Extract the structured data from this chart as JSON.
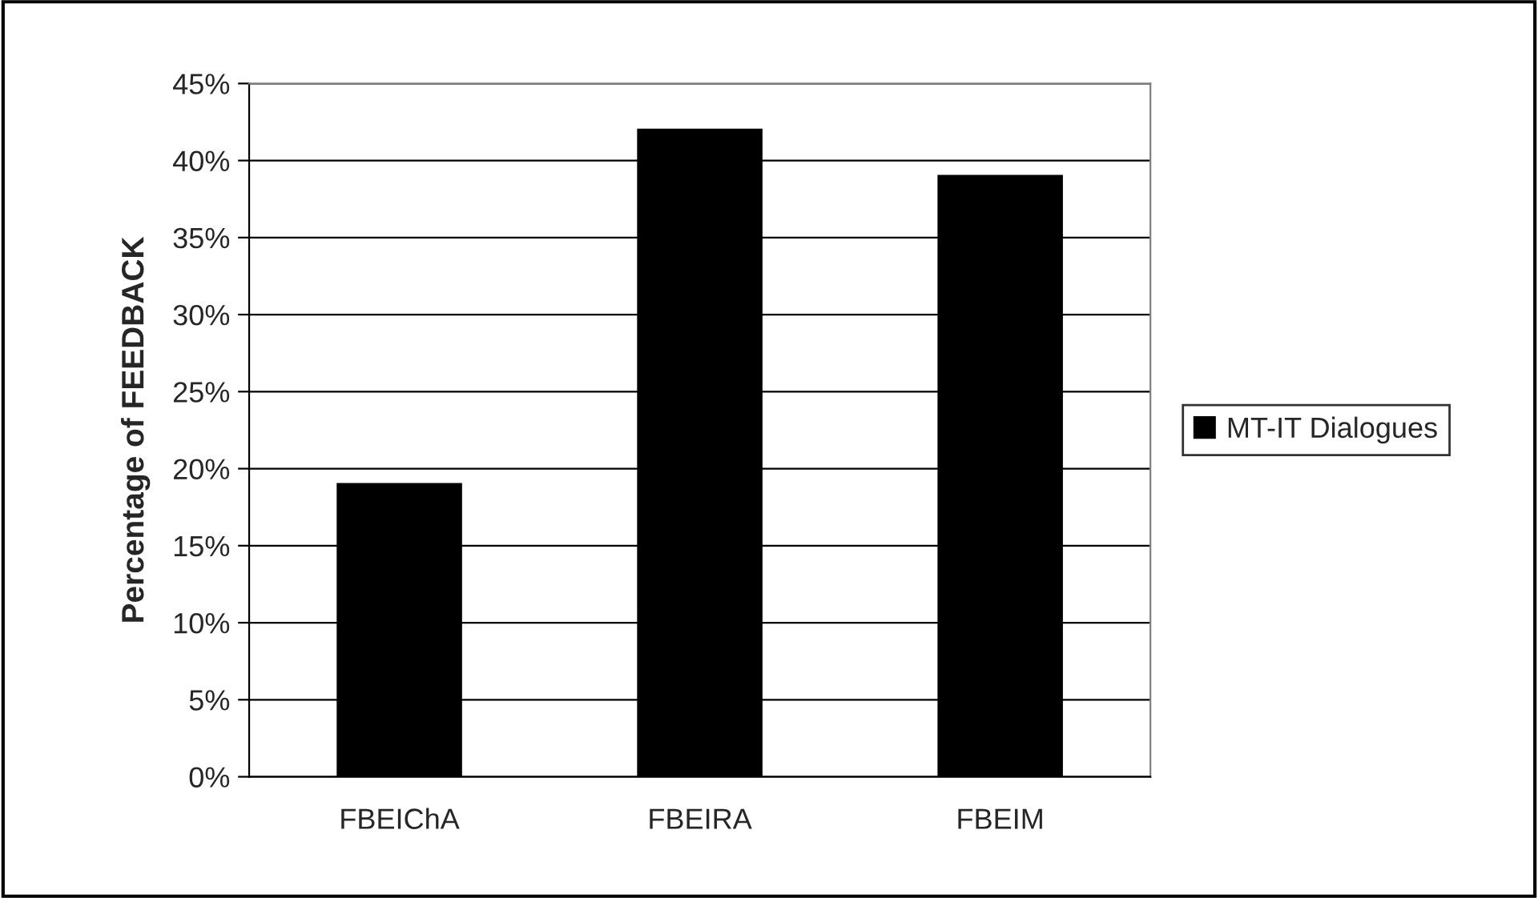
{
  "chart_data": {
    "type": "bar",
    "ylabel": "Percentage of FEEDBACK",
    "categories": [
      "FBEIChA",
      "FBEIRA",
      "FBEIM"
    ],
    "series": [
      {
        "name": "MT-IT Dialogues",
        "color": "#000000",
        "values": [
          19,
          42,
          39
        ]
      }
    ],
    "ylim": [
      0,
      45
    ],
    "yticks": [
      {
        "value": 0,
        "label": "0%"
      },
      {
        "value": 5,
        "label": "5%"
      },
      {
        "value": 10,
        "label": "10%"
      },
      {
        "value": 15,
        "label": "15%"
      },
      {
        "value": 20,
        "label": "20%"
      },
      {
        "value": 25,
        "label": "25%"
      },
      {
        "value": 30,
        "label": "30%"
      },
      {
        "value": 35,
        "label": "35%"
      },
      {
        "value": 40,
        "label": "40%"
      },
      {
        "value": 45,
        "label": "45%"
      }
    ],
    "grid": "y",
    "legend": "right"
  }
}
